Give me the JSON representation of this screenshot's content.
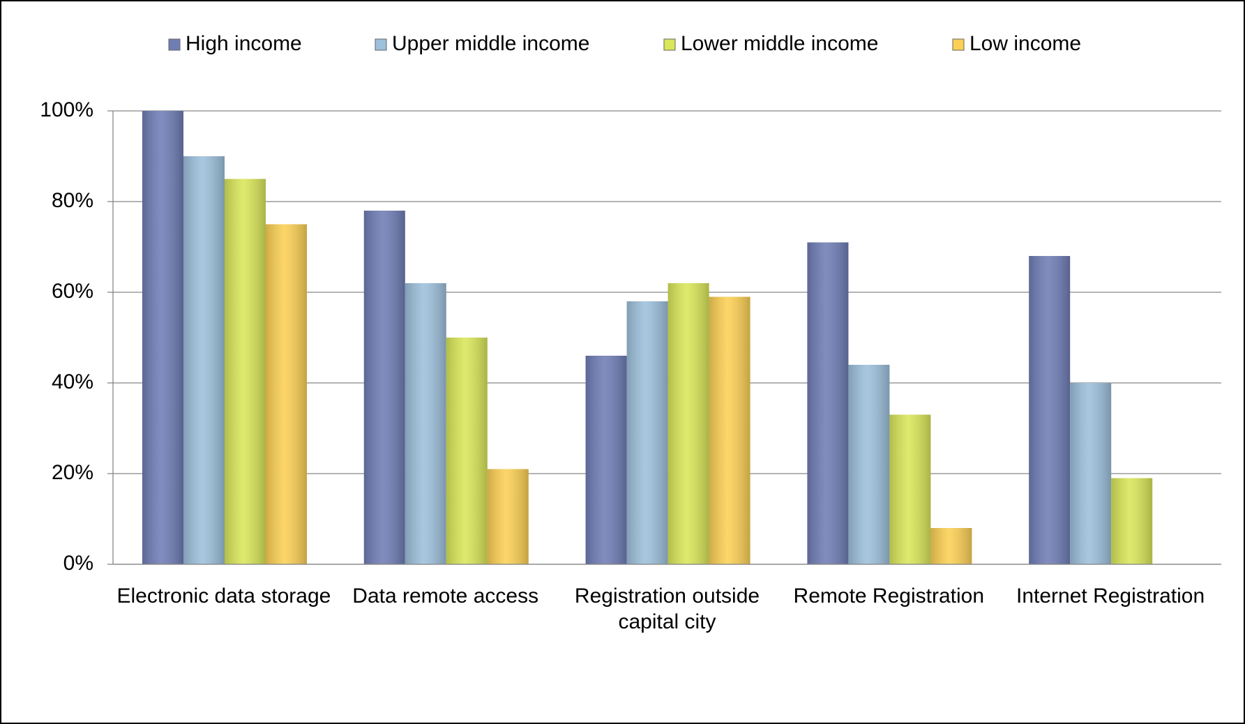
{
  "chart_data": {
    "type": "bar",
    "categories": [
      "Electronic data storage",
      "Data remote access",
      "Registration outside capital city",
      "Remote Registration",
      "Internet Registration"
    ],
    "series": [
      {
        "name": "High income",
        "color": "#6f7db5",
        "values": [
          100,
          78,
          46,
          71,
          68
        ]
      },
      {
        "name": "Upper middle income",
        "color": "#9dc0db",
        "values": [
          90,
          62,
          58,
          44,
          40
        ]
      },
      {
        "name": "Lower middle income",
        "color": "#d9e659",
        "values": [
          85,
          50,
          62,
          33,
          19
        ]
      },
      {
        "name": "Low income",
        "color": "#fcd055",
        "values": [
          75,
          21,
          59,
          8,
          null
        ]
      }
    ],
    "ylim": [
      0,
      100
    ],
    "yticks": [
      {
        "value": 0,
        "label": "0%"
      },
      {
        "value": 20,
        "label": "20%"
      },
      {
        "value": 40,
        "label": "40%"
      },
      {
        "value": 60,
        "label": "60%"
      },
      {
        "value": 80,
        "label": "80%"
      },
      {
        "value": 100,
        "label": "100%"
      }
    ],
    "grid": true,
    "legend": "top"
  }
}
